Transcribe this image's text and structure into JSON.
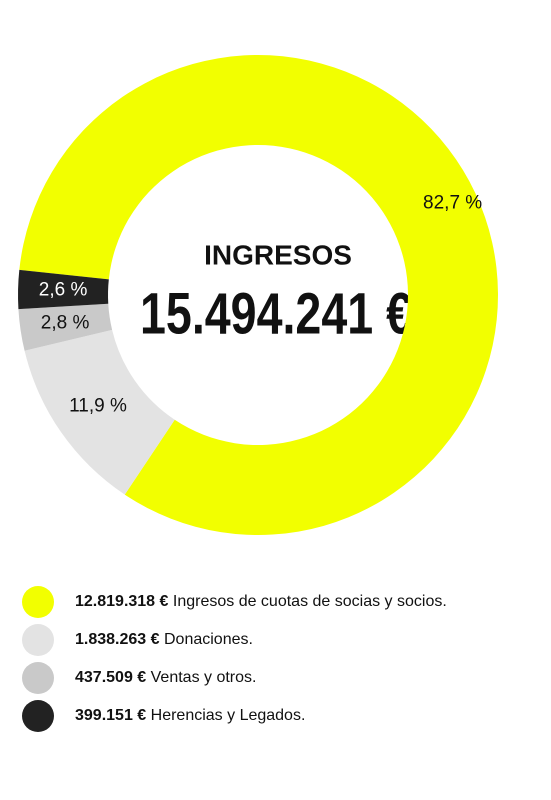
{
  "chart_data": {
    "type": "donut",
    "title": "INGRESOS",
    "total_label": "15.494.241 €",
    "start_angle": 276,
    "categories": [
      "Ingresos de cuotas de socias y socios.",
      "Donaciones.",
      "Ventas y otros.",
      "Herencias y Legados."
    ],
    "amount_labels": [
      "12.819.318 €",
      "1.838.263 €",
      "437.509 €",
      "399.151 €"
    ],
    "values": [
      82.7,
      11.9,
      2.8,
      2.6
    ],
    "value_labels": [
      "82,7 %",
      "11,9 %",
      "2,8 %",
      "2,6 %"
    ],
    "colors": [
      "#f2ff00",
      "#e3e3e3",
      "#c9c9c9",
      "#222222"
    ],
    "label_colors": [
      "#111111",
      "#111111",
      "#111111",
      "#ffffff"
    ]
  }
}
